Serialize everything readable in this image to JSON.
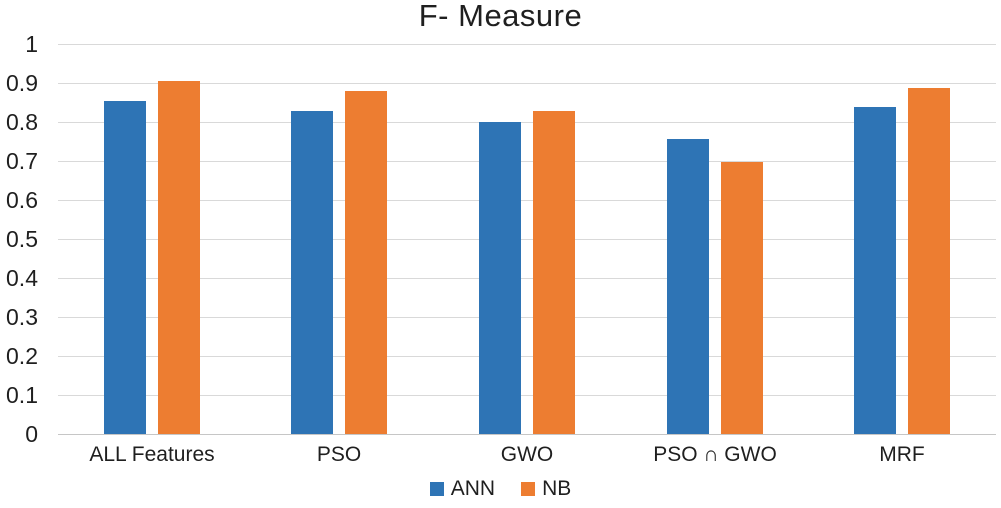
{
  "chart_data": {
    "type": "bar",
    "title": "F- Measure",
    "categories": [
      "ALL Features",
      "PSO",
      "GWO",
      "PSO ∩ GWO",
      "MRF"
    ],
    "series": [
      {
        "name": "ANN",
        "color": "#2E74B5",
        "values": [
          0.855,
          0.828,
          0.801,
          0.756,
          0.839
        ]
      },
      {
        "name": "NB",
        "color": "#ED7D31",
        "values": [
          0.906,
          0.879,
          0.827,
          0.697,
          0.888
        ]
      }
    ],
    "xlabel": "",
    "ylabel": "",
    "ylim": [
      0,
      1
    ],
    "yticks": [
      "0",
      "0.1",
      "0.2",
      "0.3",
      "0.4",
      "0.5",
      "0.6",
      "0.7",
      "0.8",
      "0.9",
      "1"
    ],
    "grid": "horizontal",
    "legend_position": "bottom",
    "colors": {
      "gridline": "#D9D9D9",
      "axis_line": "#C6C6C6",
      "text": "#1F1F1F",
      "background": "#FFFFFF"
    }
  }
}
